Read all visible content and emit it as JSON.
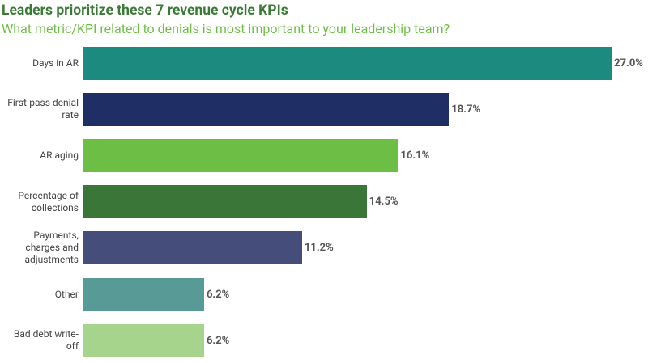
{
  "chart_data": {
    "type": "bar",
    "orientation": "horizontal",
    "title": "Leaders prioritize these 7 revenue cycle KPIs",
    "subtitle": "What metric/KPI related to denials is most important to your leadership team?",
    "categories": [
      "Days in AR",
      "First-pass denial rate",
      "AR aging",
      "Percentage of collections",
      "Payments, charges and adjustments",
      "Other",
      "Bad debt write-off"
    ],
    "values": [
      27.0,
      18.7,
      16.1,
      14.5,
      11.2,
      6.2,
      6.2
    ],
    "value_labels": [
      "27.0%",
      "18.7%",
      "16.1%",
      "14.5%",
      "11.2%",
      "6.2%",
      "6.2%"
    ],
    "colors": [
      "#1d8a7f",
      "#1f2f66",
      "#6cbf44",
      "#3b7639",
      "#454e7b",
      "#589a95",
      "#a7d48d"
    ]
  }
}
